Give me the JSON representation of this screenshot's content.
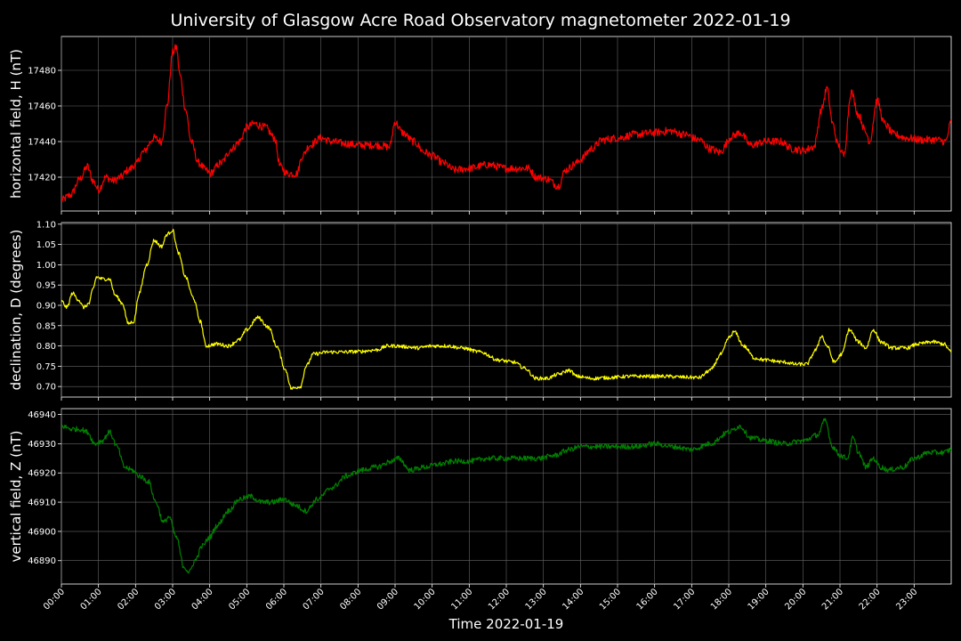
{
  "chart_data": {
    "type": "line",
    "title": "University of Glasgow Acre Road Observatory magnetometer 2022-01-19",
    "xlabel": "Time 2022-01-19",
    "xlim": [
      0,
      24
    ],
    "x_tick_labels": [
      "00:00",
      "01:00",
      "02:00",
      "03:00",
      "04:00",
      "05:00",
      "06:00",
      "07:00",
      "08:00",
      "09:00",
      "10:00",
      "11:00",
      "12:00",
      "13:00",
      "14:00",
      "15:00",
      "16:00",
      "17:00",
      "18:00",
      "19:00",
      "20:00",
      "21:00",
      "22:00",
      "23:00"
    ],
    "grid": true,
    "panels": [
      {
        "name": "horizontal",
        "ylabel": "horizontal field, H (nT)",
        "color": "#ff0000",
        "ylim": [
          17401,
          17499
        ],
        "yticks": [
          17420,
          17440,
          17460,
          17480
        ],
        "ytick_labels": [
          "17420",
          "17440",
          "17460",
          "17480"
        ],
        "noise": 2.2,
        "points": [
          [
            0,
            17407
          ],
          [
            0.25,
            17410
          ],
          [
            0.5,
            17419
          ],
          [
            0.7,
            17426
          ],
          [
            0.85,
            17418
          ],
          [
            1.0,
            17413
          ],
          [
            1.2,
            17420
          ],
          [
            1.4,
            17418
          ],
          [
            1.6,
            17420
          ],
          [
            1.8,
            17424
          ],
          [
            2.0,
            17427
          ],
          [
            2.2,
            17434
          ],
          [
            2.5,
            17442
          ],
          [
            2.7,
            17440
          ],
          [
            2.85,
            17460
          ],
          [
            3.0,
            17490
          ],
          [
            3.1,
            17493
          ],
          [
            3.2,
            17477
          ],
          [
            3.35,
            17458
          ],
          [
            3.5,
            17440
          ],
          [
            3.7,
            17428
          ],
          [
            3.9,
            17424
          ],
          [
            4.0,
            17422
          ],
          [
            4.3,
            17428
          ],
          [
            4.6,
            17436
          ],
          [
            4.8,
            17440
          ],
          [
            5.0,
            17448
          ],
          [
            5.2,
            17450
          ],
          [
            5.5,
            17448
          ],
          [
            5.75,
            17442
          ],
          [
            5.9,
            17426
          ],
          [
            6.1,
            17422
          ],
          [
            6.35,
            17422
          ],
          [
            6.5,
            17432
          ],
          [
            6.7,
            17438
          ],
          [
            7.0,
            17442
          ],
          [
            7.3,
            17440
          ],
          [
            7.6,
            17439
          ],
          [
            8.0,
            17438
          ],
          [
            8.5,
            17438
          ],
          [
            8.85,
            17437
          ],
          [
            9.0,
            17451
          ],
          [
            9.2,
            17445
          ],
          [
            9.5,
            17440
          ],
          [
            9.8,
            17434
          ],
          [
            10.0,
            17432
          ],
          [
            10.3,
            17428
          ],
          [
            10.6,
            17424
          ],
          [
            11.0,
            17425
          ],
          [
            11.5,
            17427
          ],
          [
            12.0,
            17425
          ],
          [
            12.3,
            17425
          ],
          [
            12.6,
            17425
          ],
          [
            12.8,
            17420
          ],
          [
            13.1,
            17419
          ],
          [
            13.4,
            17415
          ],
          [
            13.6,
            17424
          ],
          [
            13.9,
            17428
          ],
          [
            14.0,
            17430
          ],
          [
            14.3,
            17436
          ],
          [
            14.6,
            17441
          ],
          [
            15.0,
            17442
          ],
          [
            15.5,
            17444
          ],
          [
            16.0,
            17445
          ],
          [
            16.4,
            17446
          ],
          [
            16.8,
            17444
          ],
          [
            17.2,
            17441
          ],
          [
            17.5,
            17436
          ],
          [
            17.75,
            17434
          ],
          [
            18.1,
            17443
          ],
          [
            18.3,
            17445
          ],
          [
            18.6,
            17438
          ],
          [
            19.0,
            17440
          ],
          [
            19.4,
            17440
          ],
          [
            19.7,
            17436
          ],
          [
            20.0,
            17435
          ],
          [
            20.3,
            17437
          ],
          [
            20.5,
            17458
          ],
          [
            20.65,
            17470
          ],
          [
            20.8,
            17450
          ],
          [
            20.95,
            17438
          ],
          [
            21.1,
            17432
          ],
          [
            21.3,
            17468
          ],
          [
            21.5,
            17455
          ],
          [
            21.7,
            17445
          ],
          [
            21.8,
            17440
          ],
          [
            22.0,
            17463
          ],
          [
            22.2,
            17450
          ],
          [
            22.45,
            17444
          ],
          [
            22.8,
            17442
          ],
          [
            23.2,
            17441
          ],
          [
            23.6,
            17441
          ],
          [
            23.85,
            17440
          ],
          [
            24.0,
            17451
          ]
        ]
      },
      {
        "name": "declination",
        "ylabel": "declination, D (degrees)",
        "color": "#ffff00",
        "ylim": [
          0.674,
          1.104
        ],
        "yticks": [
          0.7,
          0.75,
          0.8,
          0.85,
          0.9,
          0.95,
          1.0,
          1.05,
          1.1
        ],
        "ytick_labels": [
          "0.70",
          "0.75",
          "0.80",
          "0.85",
          "0.90",
          "0.95",
          "1.00",
          "1.05",
          "1.10"
        ],
        "noise": 0.0045,
        "points": [
          [
            0,
            0.91
          ],
          [
            0.15,
            0.895
          ],
          [
            0.3,
            0.93
          ],
          [
            0.45,
            0.915
          ],
          [
            0.6,
            0.895
          ],
          [
            0.75,
            0.905
          ],
          [
            0.85,
            0.94
          ],
          [
            0.95,
            0.97
          ],
          [
            1.1,
            0.965
          ],
          [
            1.3,
            0.965
          ],
          [
            1.45,
            0.925
          ],
          [
            1.65,
            0.905
          ],
          [
            1.8,
            0.855
          ],
          [
            1.95,
            0.86
          ],
          [
            2.1,
            0.93
          ],
          [
            2.3,
            1.0
          ],
          [
            2.5,
            1.06
          ],
          [
            2.7,
            1.045
          ],
          [
            2.85,
            1.075
          ],
          [
            3.0,
            1.085
          ],
          [
            3.15,
            1.03
          ],
          [
            3.35,
            0.97
          ],
          [
            3.55,
            0.92
          ],
          [
            3.75,
            0.86
          ],
          [
            3.9,
            0.8
          ],
          [
            4.2,
            0.805
          ],
          [
            4.5,
            0.8
          ],
          [
            4.8,
            0.815
          ],
          [
            5.0,
            0.84
          ],
          [
            5.3,
            0.87
          ],
          [
            5.6,
            0.845
          ],
          [
            5.8,
            0.8
          ],
          [
            6.05,
            0.74
          ],
          [
            6.2,
            0.695
          ],
          [
            6.45,
            0.7
          ],
          [
            6.6,
            0.75
          ],
          [
            6.8,
            0.78
          ],
          [
            7.2,
            0.785
          ],
          [
            7.6,
            0.785
          ],
          [
            8.0,
            0.786
          ],
          [
            8.5,
            0.79
          ],
          [
            8.8,
            0.8
          ],
          [
            9.0,
            0.8
          ],
          [
            9.3,
            0.798
          ],
          [
            9.6,
            0.795
          ],
          [
            10.0,
            0.8
          ],
          [
            10.4,
            0.8
          ],
          [
            10.8,
            0.795
          ],
          [
            11.3,
            0.785
          ],
          [
            11.8,
            0.765
          ],
          [
            12.2,
            0.76
          ],
          [
            12.5,
            0.745
          ],
          [
            12.8,
            0.72
          ],
          [
            13.1,
            0.72
          ],
          [
            13.4,
            0.73
          ],
          [
            13.7,
            0.74
          ],
          [
            13.9,
            0.725
          ],
          [
            14.3,
            0.72
          ],
          [
            14.8,
            0.722
          ],
          [
            15.3,
            0.725
          ],
          [
            15.8,
            0.725
          ],
          [
            16.3,
            0.725
          ],
          [
            16.8,
            0.723
          ],
          [
            17.2,
            0.722
          ],
          [
            17.5,
            0.74
          ],
          [
            17.8,
            0.78
          ],
          [
            18.0,
            0.82
          ],
          [
            18.15,
            0.835
          ],
          [
            18.4,
            0.8
          ],
          [
            18.7,
            0.77
          ],
          [
            19.0,
            0.765
          ],
          [
            19.5,
            0.76
          ],
          [
            19.8,
            0.755
          ],
          [
            20.1,
            0.755
          ],
          [
            20.35,
            0.79
          ],
          [
            20.5,
            0.825
          ],
          [
            20.65,
            0.8
          ],
          [
            20.85,
            0.76
          ],
          [
            21.05,
            0.78
          ],
          [
            21.25,
            0.84
          ],
          [
            21.5,
            0.81
          ],
          [
            21.7,
            0.795
          ],
          [
            21.9,
            0.84
          ],
          [
            22.1,
            0.81
          ],
          [
            22.4,
            0.795
          ],
          [
            22.8,
            0.795
          ],
          [
            23.1,
            0.805
          ],
          [
            23.5,
            0.81
          ],
          [
            23.8,
            0.805
          ],
          [
            24.0,
            0.785
          ]
        ]
      },
      {
        "name": "vertical",
        "ylabel": "vertical field, Z (nT)",
        "color": "#008000",
        "ylim": [
          46882,
          46942
        ],
        "yticks": [
          46890,
          46900,
          46910,
          46920,
          46930,
          46940
        ],
        "ytick_labels": [
          "46890",
          "46900",
          "46910",
          "46920",
          "46930",
          "46940"
        ],
        "noise": 0.9,
        "points": [
          [
            0,
            46936
          ],
          [
            0.3,
            46935
          ],
          [
            0.5,
            46935
          ],
          [
            0.7,
            46934
          ],
          [
            0.9,
            46930
          ],
          [
            1.1,
            46931
          ],
          [
            1.3,
            46934
          ],
          [
            1.5,
            46929
          ],
          [
            1.7,
            46922
          ],
          [
            1.9,
            46921
          ],
          [
            2.1,
            46919
          ],
          [
            2.35,
            46917
          ],
          [
            2.55,
            46910
          ],
          [
            2.75,
            46903
          ],
          [
            2.9,
            46905
          ],
          [
            3.1,
            46898
          ],
          [
            3.3,
            46888
          ],
          [
            3.45,
            46886
          ],
          [
            3.6,
            46890
          ],
          [
            3.8,
            46895
          ],
          [
            4.0,
            46898
          ],
          [
            4.2,
            46902
          ],
          [
            4.5,
            46907
          ],
          [
            4.8,
            46911
          ],
          [
            5.1,
            46912
          ],
          [
            5.4,
            46910
          ],
          [
            5.7,
            46910
          ],
          [
            6.0,
            46911
          ],
          [
            6.3,
            46909
          ],
          [
            6.6,
            46907
          ],
          [
            6.9,
            46911
          ],
          [
            7.3,
            46915
          ],
          [
            7.7,
            46919
          ],
          [
            8.1,
            46921
          ],
          [
            8.5,
            46922
          ],
          [
            8.9,
            46924
          ],
          [
            9.1,
            46925
          ],
          [
            9.4,
            46921
          ],
          [
            9.8,
            46922
          ],
          [
            10.2,
            46923
          ],
          [
            10.6,
            46924
          ],
          [
            11.0,
            46924
          ],
          [
            11.5,
            46925
          ],
          [
            12.0,
            46925
          ],
          [
            12.5,
            46925
          ],
          [
            12.9,
            46925
          ],
          [
            13.3,
            46926
          ],
          [
            13.7,
            46928
          ],
          [
            14.0,
            46929
          ],
          [
            14.5,
            46929
          ],
          [
            15.0,
            46929
          ],
          [
            15.5,
            46929
          ],
          [
            16.0,
            46930
          ],
          [
            16.5,
            46929
          ],
          [
            17.0,
            46928
          ],
          [
            17.5,
            46930
          ],
          [
            18.0,
            46934
          ],
          [
            18.3,
            46936
          ],
          [
            18.6,
            46932
          ],
          [
            19.0,
            46931
          ],
          [
            19.5,
            46930
          ],
          [
            20.0,
            46931
          ],
          [
            20.4,
            46933
          ],
          [
            20.6,
            46938
          ],
          [
            20.8,
            46929
          ],
          [
            21.0,
            46926
          ],
          [
            21.2,
            46925
          ],
          [
            21.35,
            46932
          ],
          [
            21.5,
            46927
          ],
          [
            21.7,
            46922
          ],
          [
            21.9,
            46925
          ],
          [
            22.1,
            46922
          ],
          [
            22.3,
            46921
          ],
          [
            22.7,
            46922
          ],
          [
            23.0,
            46925
          ],
          [
            23.4,
            46927
          ],
          [
            23.8,
            46927
          ],
          [
            24.0,
            46928
          ]
        ]
      }
    ]
  }
}
